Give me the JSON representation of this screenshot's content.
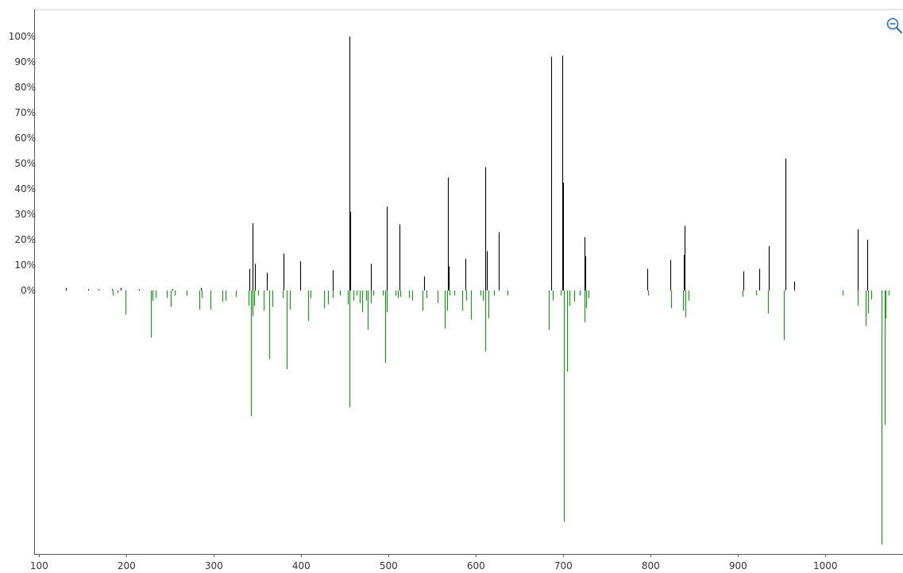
{
  "chart_data": {
    "type": "bar",
    "title": "",
    "xlabel": "",
    "ylabel": "",
    "xlim": [
      100,
      1083
    ],
    "ylim": [
      -100,
      100
    ],
    "x_ticks": [
      100,
      200,
      300,
      400,
      500,
      600,
      700,
      800,
      900,
      1000
    ],
    "y_ticks": [
      0,
      10,
      20,
      30,
      40,
      50,
      60,
      70,
      80,
      90,
      100
    ],
    "y_tick_labels": [
      "0%",
      "10%",
      "20%",
      "30%",
      "40%",
      "50%",
      "60%",
      "70%",
      "80%",
      "90%",
      "100%"
    ],
    "grid": false,
    "legend": "none",
    "series": [
      {
        "color": "#000000",
        "direction": "up",
        "x": [
          131,
          156,
          168,
          183,
          193,
          214,
          252,
          285,
          341,
          344,
          347,
          361,
          380,
          399,
          436,
          455,
          456,
          480,
          498,
          512,
          541,
          568,
          569,
          588,
          611,
          612,
          626,
          686,
          699,
          700,
          724,
          725,
          796,
          822,
          838,
          839,
          906,
          924,
          935,
          954,
          964,
          1037,
          1048
        ],
        "values": [
          1,
          0.5,
          0.5,
          0.5,
          1,
          0.5,
          0.5,
          1,
          8.5,
          26.5,
          10.5,
          7,
          14.5,
          11.5,
          8,
          100,
          31,
          10.5,
          33,
          26,
          5.5,
          44.5,
          9.5,
          12.5,
          48.5,
          15.5,
          23,
          92,
          92.5,
          42.5,
          21,
          13.5,
          8.5,
          12,
          14,
          25.5,
          7.5,
          8.5,
          17.5,
          52,
          3.5,
          24,
          20
        ]
      },
      {
        "color": "#1a9a1a",
        "direction": "down",
        "x": [
          184,
          190,
          199,
          228,
          230,
          233,
          246,
          251,
          255,
          269,
          283,
          286,
          296,
          310,
          313,
          325,
          340,
          342,
          344,
          346,
          351,
          357,
          363,
          367,
          379,
          383,
          387,
          408,
          411,
          426,
          431,
          436,
          444,
          453,
          455,
          460,
          463,
          467,
          470,
          474,
          476,
          480,
          482,
          493,
          496,
          498,
          508,
          511,
          513,
          523,
          527,
          539,
          543,
          556,
          564,
          567,
          570,
          575,
          584,
          589,
          594,
          605,
          608,
          611,
          614,
          621,
          636,
          683,
          688,
          697,
          701,
          704,
          707,
          712,
          719,
          724,
          726,
          729,
          797,
          823,
          837,
          840,
          843,
          905,
          921,
          934,
          952,
          1020,
          1037,
          1046,
          1049,
          1052,
          1064,
          1068,
          1069,
          1072
        ],
        "values": [
          2,
          1,
          9.5,
          18.5,
          4,
          3,
          3,
          6.5,
          2,
          2,
          7.5,
          3,
          7.5,
          4.5,
          4,
          2.5,
          6,
          49.5,
          10,
          6,
          2,
          8,
          27,
          6.5,
          3,
          31,
          7.5,
          12,
          3,
          7,
          5.5,
          3,
          2,
          5.5,
          46,
          4,
          2,
          5,
          8.5,
          4,
          15.5,
          5,
          2,
          2,
          28.5,
          8.5,
          2,
          3,
          2.5,
          3,
          4,
          8,
          3,
          5,
          15,
          8,
          2,
          2,
          8,
          4,
          11.5,
          2,
          4,
          24,
          11,
          2,
          2,
          15.5,
          4,
          2,
          91,
          32,
          6,
          4.5,
          2,
          12.5,
          7,
          3,
          2,
          7,
          8,
          10.5,
          4,
          2.5,
          2,
          9,
          19.5,
          2,
          6,
          14,
          9,
          3.5,
          100,
          53,
          11,
          2
        ]
      }
    ]
  },
  "controls": {
    "zoom_out_icon": "magnifier-minus-icon"
  },
  "colors": {
    "positive": "#000000",
    "negative": "#1a9a1a",
    "axis": "#555555",
    "icon": "#2a6fb5"
  }
}
